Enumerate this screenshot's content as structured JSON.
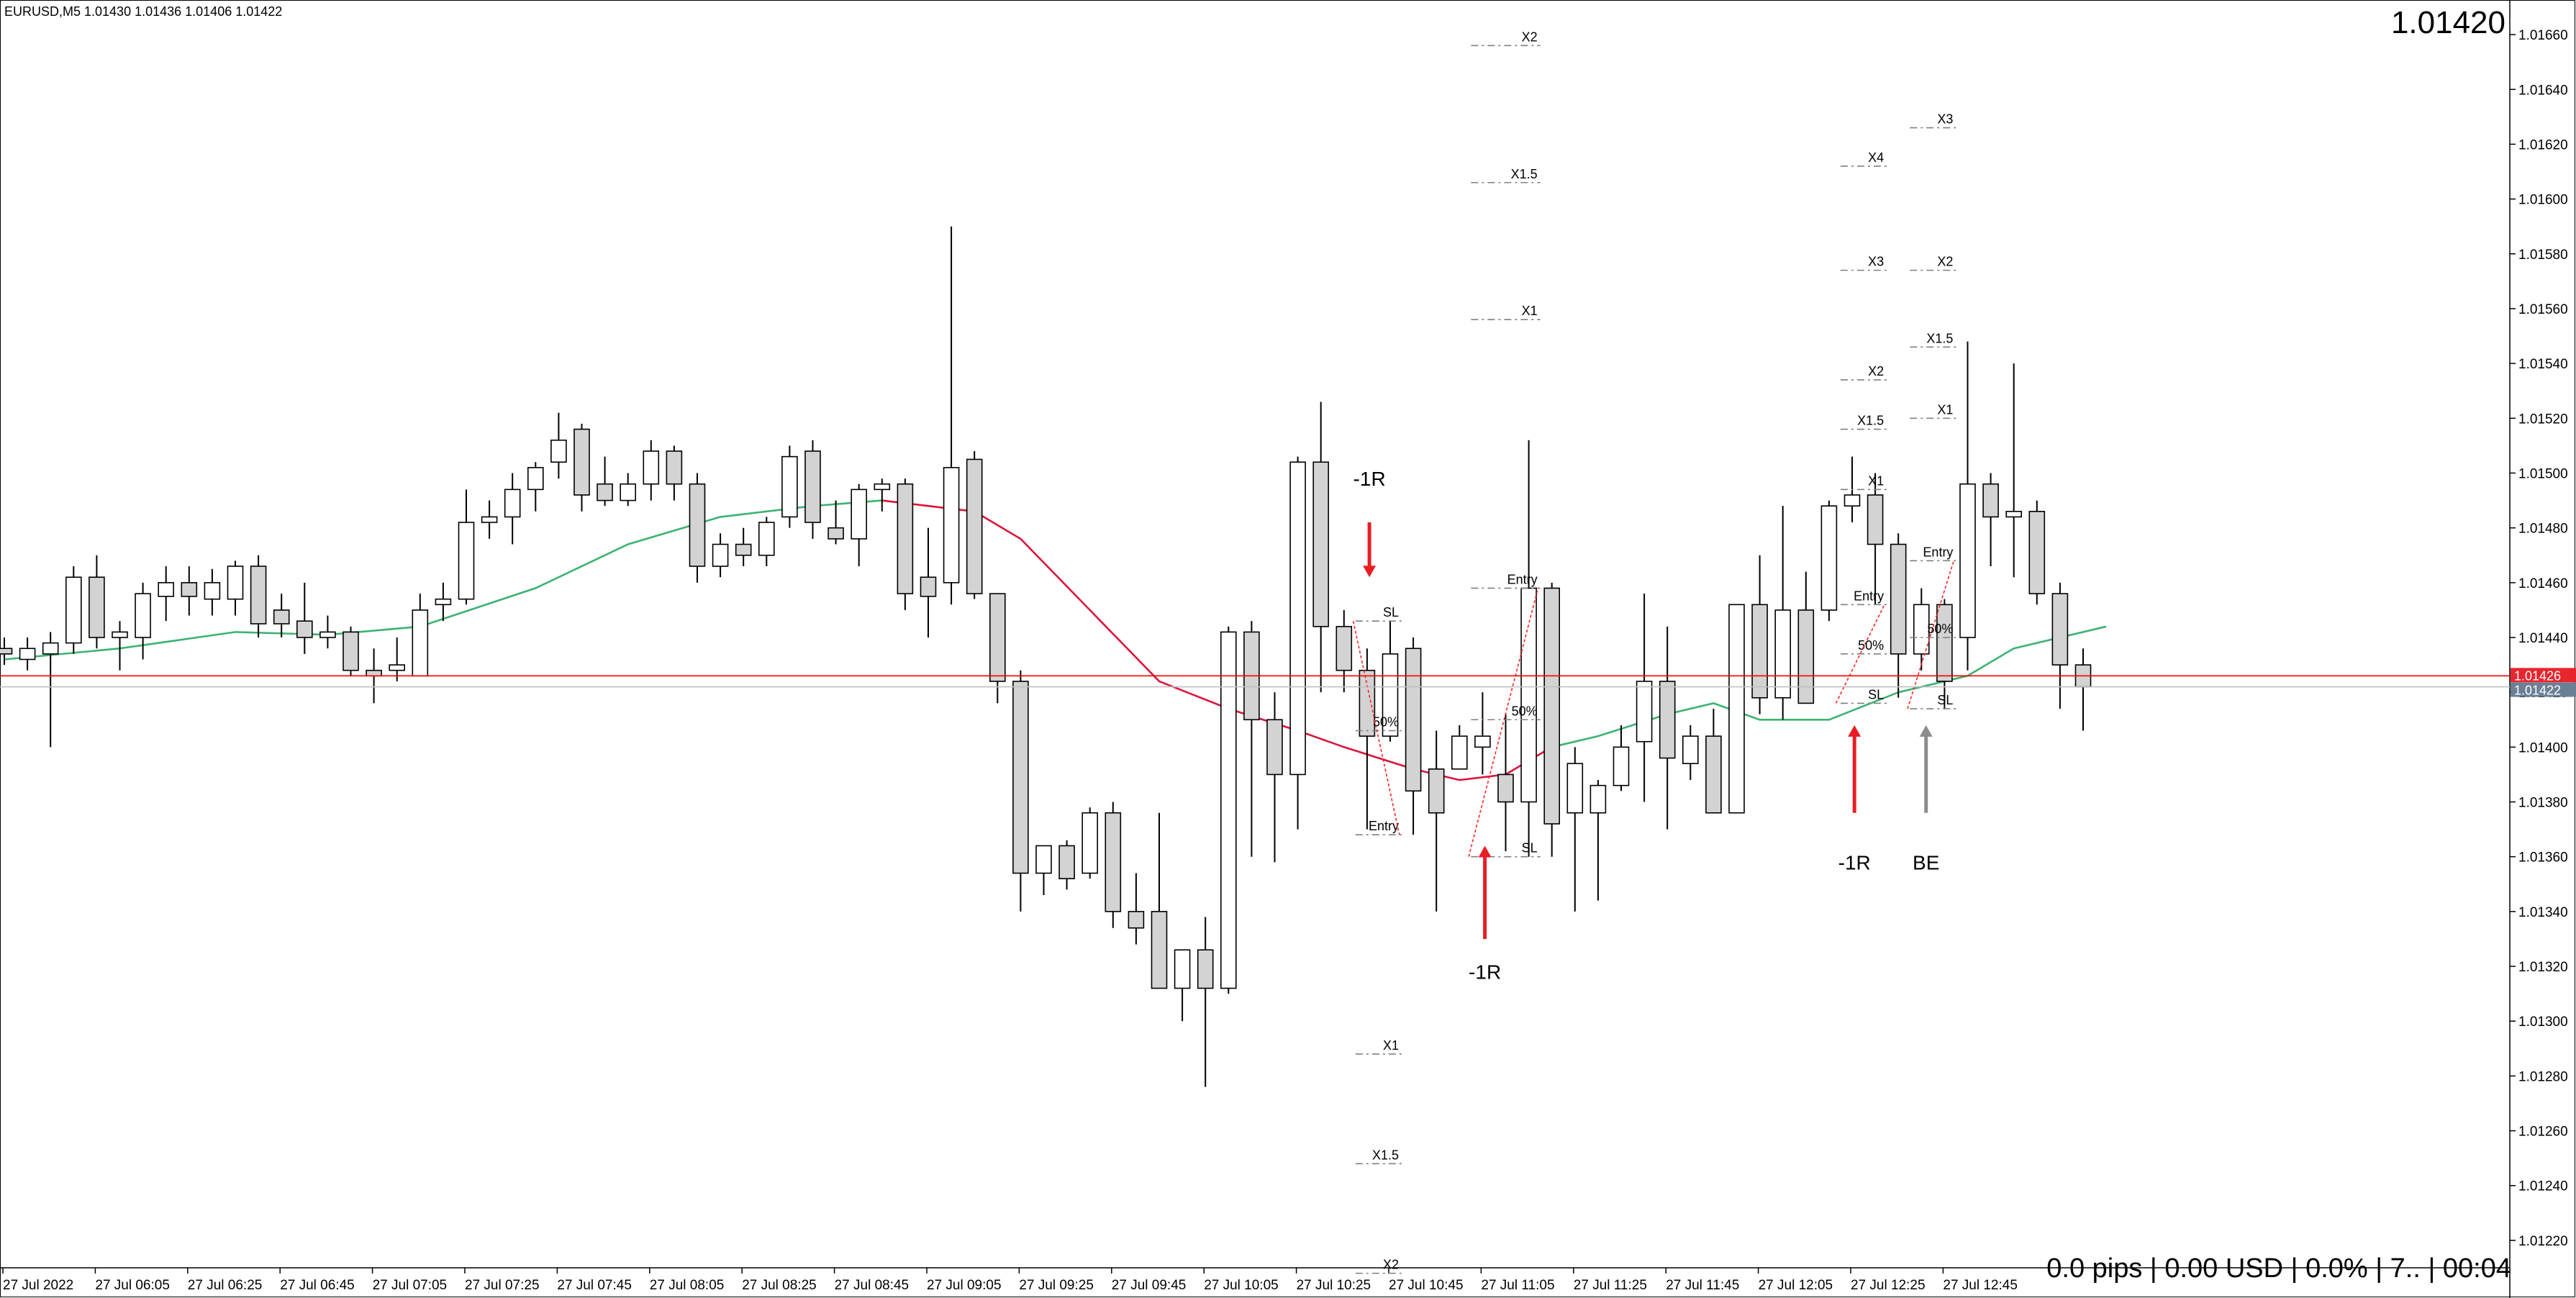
{
  "header": {
    "symbol_info": "EURUSD,M5  1.01430 1.01436 1.01406 1.01422",
    "big_price": "1.01420"
  },
  "footer": {
    "status_text": "0.0 pips | 0.00 USD | 0.0% | 7.. | 00:04"
  },
  "colors": {
    "background": "#ffffff",
    "bull_fill": "#ffffff",
    "bear_fill": "#d3d3d3",
    "candle_outline": "#000000",
    "ma_up": "#3cb371",
    "ma_down": "#dc143c",
    "ask_line": "#ff0000",
    "bid_line": "#c0c0c0",
    "ask_tag": "#e8262e",
    "bid_tag": "#6b7f95",
    "arrow_red": "#e81e25",
    "arrow_gray": "#8c8c8c",
    "level_line": "#808080"
  },
  "chart_data": {
    "type": "candlestick",
    "symbol": "EURUSD",
    "timeframe": "M5",
    "ylim": [
      1.0121,
      1.0167
    ],
    "y_ticks": [
      "1.01660",
      "1.01640",
      "1.01620",
      "1.01600",
      "1.01580",
      "1.01560",
      "1.01540",
      "1.01520",
      "1.01500",
      "1.01480",
      "1.01460",
      "1.01440",
      "1.01420",
      "1.01400",
      "1.01380",
      "1.01360",
      "1.01340",
      "1.01320",
      "1.01300",
      "1.01280",
      "1.01260",
      "1.01240",
      "1.01220"
    ],
    "x_ticks": [
      "27 Jul 2022",
      "27 Jul 06:05",
      "27 Jul 06:25",
      "27 Jul 06:45",
      "27 Jul 07:05",
      "27 Jul 07:25",
      "27 Jul 07:45",
      "27 Jul 08:05",
      "27 Jul 08:25",
      "27 Jul 08:45",
      "27 Jul 09:05",
      "27 Jul 09:25",
      "27 Jul 09:45",
      "27 Jul 10:05",
      "27 Jul 10:25",
      "27 Jul 10:45",
      "27 Jul 11:05",
      "27 Jul 11:25",
      "27 Jul 11:45",
      "27 Jul 12:05",
      "27 Jul 12:25",
      "27 Jul 12:45"
    ],
    "ask_price": "1.01426",
    "bid_price": "1.01422",
    "candles": [
      {
        "o": 1.01436,
        "h": 1.0144,
        "l": 1.0143,
        "c": 1.01434
      },
      {
        "o": 1.01432,
        "h": 1.0144,
        "l": 1.01428,
        "c": 1.01436
      },
      {
        "o": 1.01434,
        "h": 1.01442,
        "l": 1.014,
        "c": 1.01438
      },
      {
        "o": 1.01438,
        "h": 1.01466,
        "l": 1.01434,
        "c": 1.01462
      },
      {
        "o": 1.01462,
        "h": 1.0147,
        "l": 1.01436,
        "c": 1.0144
      },
      {
        "o": 1.0144,
        "h": 1.01446,
        "l": 1.01428,
        "c": 1.01442
      },
      {
        "o": 1.0144,
        "h": 1.0146,
        "l": 1.01432,
        "c": 1.01456
      },
      {
        "o": 1.01455,
        "h": 1.01466,
        "l": 1.01446,
        "c": 1.0146
      },
      {
        "o": 1.0146,
        "h": 1.01466,
        "l": 1.01448,
        "c": 1.01455
      },
      {
        "o": 1.01454,
        "h": 1.01465,
        "l": 1.01448,
        "c": 1.0146
      },
      {
        "o": 1.01454,
        "h": 1.01468,
        "l": 1.01448,
        "c": 1.01466
      },
      {
        "o": 1.01466,
        "h": 1.0147,
        "l": 1.0144,
        "c": 1.01445
      },
      {
        "o": 1.0145,
        "h": 1.01456,
        "l": 1.0144,
        "c": 1.01445
      },
      {
        "o": 1.01446,
        "h": 1.0146,
        "l": 1.01434,
        "c": 1.0144
      },
      {
        "o": 1.0144,
        "h": 1.01448,
        "l": 1.01436,
        "c": 1.01442
      },
      {
        "o": 1.01442,
        "h": 1.01444,
        "l": 1.01426,
        "c": 1.01428
      },
      {
        "o": 1.01428,
        "h": 1.01436,
        "l": 1.01416,
        "c": 1.01426
      },
      {
        "o": 1.01428,
        "h": 1.0144,
        "l": 1.01424,
        "c": 1.0143
      },
      {
        "o": 1.01426,
        "h": 1.01456,
        "l": 1.01426,
        "c": 1.0145
      },
      {
        "o": 1.01452,
        "h": 1.0146,
        "l": 1.01446,
        "c": 1.01454
      },
      {
        "o": 1.01454,
        "h": 1.01494,
        "l": 1.01452,
        "c": 1.01482
      },
      {
        "o": 1.01482,
        "h": 1.0149,
        "l": 1.01476,
        "c": 1.01484
      },
      {
        "o": 1.01484,
        "h": 1.015,
        "l": 1.01474,
        "c": 1.01494
      },
      {
        "o": 1.01494,
        "h": 1.01504,
        "l": 1.01486,
        "c": 1.01502
      },
      {
        "o": 1.01504,
        "h": 1.01522,
        "l": 1.01498,
        "c": 1.01512
      },
      {
        "o": 1.01516,
        "h": 1.01518,
        "l": 1.01486,
        "c": 1.01492
      },
      {
        "o": 1.01496,
        "h": 1.01506,
        "l": 1.01488,
        "c": 1.0149
      },
      {
        "o": 1.0149,
        "h": 1.015,
        "l": 1.01488,
        "c": 1.01496
      },
      {
        "o": 1.01496,
        "h": 1.01512,
        "l": 1.0149,
        "c": 1.01508
      },
      {
        "o": 1.01508,
        "h": 1.0151,
        "l": 1.0149,
        "c": 1.01496
      },
      {
        "o": 1.01496,
        "h": 1.015,
        "l": 1.0146,
        "c": 1.01466
      },
      {
        "o": 1.01466,
        "h": 1.01478,
        "l": 1.01462,
        "c": 1.01474
      },
      {
        "o": 1.01474,
        "h": 1.0148,
        "l": 1.01466,
        "c": 1.0147
      },
      {
        "o": 1.0147,
        "h": 1.01484,
        "l": 1.01466,
        "c": 1.01482
      },
      {
        "o": 1.01484,
        "h": 1.0151,
        "l": 1.0148,
        "c": 1.01506
      },
      {
        "o": 1.01508,
        "h": 1.01512,
        "l": 1.01476,
        "c": 1.01482
      },
      {
        "o": 1.0148,
        "h": 1.0149,
        "l": 1.01474,
        "c": 1.01476
      },
      {
        "o": 1.01476,
        "h": 1.01496,
        "l": 1.01466,
        "c": 1.01494
      },
      {
        "o": 1.01494,
        "h": 1.01498,
        "l": 1.01486,
        "c": 1.01496
      },
      {
        "o": 1.01496,
        "h": 1.01498,
        "l": 1.0145,
        "c": 1.01456
      },
      {
        "o": 1.01462,
        "h": 1.0148,
        "l": 1.0144,
        "c": 1.01455
      },
      {
        "o": 1.0146,
        "h": 1.0159,
        "l": 1.01452,
        "c": 1.01502
      },
      {
        "o": 1.01505,
        "h": 1.01508,
        "l": 1.01454,
        "c": 1.01456
      },
      {
        "o": 1.01456,
        "h": 1.01456,
        "l": 1.01416,
        "c": 1.01424
      },
      {
        "o": 1.01424,
        "h": 1.01428,
        "l": 1.0134,
        "c": 1.01354
      },
      {
        "o": 1.01354,
        "h": 1.01364,
        "l": 1.01346,
        "c": 1.01364
      },
      {
        "o": 1.01364,
        "h": 1.01366,
        "l": 1.01348,
        "c": 1.01352
      },
      {
        "o": 1.01354,
        "h": 1.01378,
        "l": 1.01352,
        "c": 1.01376
      },
      {
        "o": 1.01376,
        "h": 1.0138,
        "l": 1.01334,
        "c": 1.0134
      },
      {
        "o": 1.0134,
        "h": 1.01354,
        "l": 1.01328,
        "c": 1.01334
      },
      {
        "o": 1.0134,
        "h": 1.01376,
        "l": 1.01316,
        "c": 1.01312
      },
      {
        "o": 1.01312,
        "h": 1.01322,
        "l": 1.013,
        "c": 1.01326
      },
      {
        "o": 1.01326,
        "h": 1.01338,
        "l": 1.01276,
        "c": 1.01312
      },
      {
        "o": 1.01312,
        "h": 1.01444,
        "l": 1.0131,
        "c": 1.01442
      },
      {
        "o": 1.01442,
        "h": 1.01446,
        "l": 1.0136,
        "c": 1.0141
      },
      {
        "o": 1.0141,
        "h": 1.0142,
        "l": 1.01358,
        "c": 1.0139
      },
      {
        "o": 1.0139,
        "h": 1.01506,
        "l": 1.0137,
        "c": 1.01504
      },
      {
        "o": 1.01504,
        "h": 1.01526,
        "l": 1.0142,
        "c": 1.01444
      },
      {
        "o": 1.01444,
        "h": 1.0145,
        "l": 1.0142,
        "c": 1.01428
      },
      {
        "o": 1.01428,
        "h": 1.01436,
        "l": 1.0137,
        "c": 1.01404
      },
      {
        "o": 1.01404,
        "h": 1.01446,
        "l": 1.01402,
        "c": 1.01434
      },
      {
        "o": 1.01436,
        "h": 1.0144,
        "l": 1.01368,
        "c": 1.01384
      },
      {
        "o": 1.01392,
        "h": 1.01406,
        "l": 1.0134,
        "c": 1.01376
      },
      {
        "o": 1.01392,
        "h": 1.01408,
        "l": 1.01392,
        "c": 1.01404
      },
      {
        "o": 1.014,
        "h": 1.0142,
        "l": 1.0139,
        "c": 1.01404
      },
      {
        "o": 1.0139,
        "h": 1.01412,
        "l": 1.01362,
        "c": 1.0138
      },
      {
        "o": 1.0138,
        "h": 1.01512,
        "l": 1.0136,
        "c": 1.01458
      },
      {
        "o": 1.01458,
        "h": 1.0146,
        "l": 1.0136,
        "c": 1.01372
      },
      {
        "o": 1.01376,
        "h": 1.014,
        "l": 1.0134,
        "c": 1.01394
      },
      {
        "o": 1.01376,
        "h": 1.01388,
        "l": 1.01344,
        "c": 1.01386
      },
      {
        "o": 1.01386,
        "h": 1.01408,
        "l": 1.01384,
        "c": 1.014
      },
      {
        "o": 1.01402,
        "h": 1.01456,
        "l": 1.0138,
        "c": 1.01424
      },
      {
        "o": 1.01424,
        "h": 1.01444,
        "l": 1.0137,
        "c": 1.01396
      },
      {
        "o": 1.01394,
        "h": 1.01408,
        "l": 1.01388,
        "c": 1.01404
      },
      {
        "o": 1.01404,
        "h": 1.01414,
        "l": 1.01376,
        "c": 1.01376
      },
      {
        "o": 1.01376,
        "h": 1.01452,
        "l": 1.01376,
        "c": 1.01452
      },
      {
        "o": 1.01452,
        "h": 1.0147,
        "l": 1.01412,
        "c": 1.01418
      },
      {
        "o": 1.01418,
        "h": 1.01488,
        "l": 1.0141,
        "c": 1.0145
      },
      {
        "o": 1.0145,
        "h": 1.01464,
        "l": 1.01416,
        "c": 1.01416
      },
      {
        "o": 1.0145,
        "h": 1.0149,
        "l": 1.01446,
        "c": 1.01488
      },
      {
        "o": 1.01488,
        "h": 1.01506,
        "l": 1.01482,
        "c": 1.01492
      },
      {
        "o": 1.01492,
        "h": 1.015,
        "l": 1.01452,
        "c": 1.01474
      },
      {
        "o": 1.01474,
        "h": 1.01478,
        "l": 1.01418,
        "c": 1.01434
      },
      {
        "o": 1.01434,
        "h": 1.01458,
        "l": 1.01428,
        "c": 1.01452
      },
      {
        "o": 1.01452,
        "h": 1.01454,
        "l": 1.01414,
        "c": 1.01424
      },
      {
        "o": 1.0144,
        "h": 1.01548,
        "l": 1.01428,
        "c": 1.01496
      },
      {
        "o": 1.01496,
        "h": 1.015,
        "l": 1.01466,
        "c": 1.01484
      },
      {
        "o": 1.01484,
        "h": 1.0154,
        "l": 1.01462,
        "c": 1.01486
      },
      {
        "o": 1.01486,
        "h": 1.0149,
        "l": 1.01452,
        "c": 1.01456
      },
      {
        "o": 1.01456,
        "h": 1.0146,
        "l": 1.01414,
        "c": 1.0143
      },
      {
        "o": 1.0143,
        "h": 1.01436,
        "l": 1.01406,
        "c": 1.01422
      }
    ],
    "ma_points": [
      [
        0,
        1.01432
      ],
      [
        5,
        1.01436
      ],
      [
        10,
        1.01442
      ],
      [
        14,
        1.01441
      ],
      [
        18,
        1.01444
      ],
      [
        23,
        1.01458
      ],
      [
        27,
        1.01474
      ],
      [
        31,
        1.01484
      ],
      [
        35,
        1.01488
      ],
      [
        38,
        1.0149
      ],
      [
        42,
        1.01486
      ],
      [
        44,
        1.01476
      ],
      [
        47,
        1.0145
      ],
      [
        50,
        1.01424
      ],
      [
        53,
        1.01414
      ],
      [
        56,
        1.01406
      ],
      [
        58,
        1.014
      ],
      [
        61,
        1.01392
      ],
      [
        63,
        1.01388
      ],
      [
        65,
        1.0139
      ],
      [
        67,
        1.014
      ],
      [
        69,
        1.01404
      ],
      [
        72,
        1.01412
      ],
      [
        74,
        1.01416
      ],
      [
        76,
        1.0141
      ],
      [
        79,
        1.0141
      ],
      [
        82,
        1.0142
      ],
      [
        85,
        1.01426
      ],
      [
        87,
        1.01436
      ],
      [
        89,
        1.0144
      ],
      [
        91,
        1.01444
      ]
    ],
    "ma_color_segments": [
      {
        "from": 0,
        "to": 38,
        "color": "up"
      },
      {
        "from": 38,
        "to": 67,
        "color": "down"
      },
      {
        "from": 67,
        "to": 91,
        "color": "up"
      }
    ],
    "annotations": {
      "levels": [
        {
          "label": "X2",
          "price": 1.01656,
          "i1": 63.5,
          "i2": 66.5
        },
        {
          "label": "X1.5",
          "price": 1.01606,
          "i1": 63.5,
          "i2": 66.5
        },
        {
          "label": "X1",
          "price": 1.01556,
          "i1": 63.5,
          "i2": 66.5
        },
        {
          "label": "Entry",
          "price": 1.01458,
          "i1": 63.5,
          "i2": 66.5
        },
        {
          "label": "50%",
          "price": 1.0141,
          "i1": 63.5,
          "i2": 66.5
        },
        {
          "label": "SL",
          "price": 1.0136,
          "i1": 63.5,
          "i2": 66.5
        },
        {
          "label": "SL",
          "price": 1.01446,
          "i1": 58.5,
          "i2": 60.5
        },
        {
          "label": "50%",
          "price": 1.01406,
          "i1": 58.5,
          "i2": 60.5
        },
        {
          "label": "Entry",
          "price": 1.01368,
          "i1": 58.5,
          "i2": 60.5
        },
        {
          "label": "X1",
          "price": 1.01288,
          "i1": 58.5,
          "i2": 60.5
        },
        {
          "label": "X1.5",
          "price": 1.01248,
          "i1": 58.5,
          "i2": 60.5
        },
        {
          "label": "X2",
          "price": 1.01208,
          "i1": 58.5,
          "i2": 60.5
        },
        {
          "label": "X4",
          "price": 1.01612,
          "i1": 79.5,
          "i2": 81.5
        },
        {
          "label": "X3",
          "price": 1.01574,
          "i1": 79.5,
          "i2": 81.5
        },
        {
          "label": "X2",
          "price": 1.01534,
          "i1": 79.5,
          "i2": 81.5
        },
        {
          "label": "X1.5",
          "price": 1.01516,
          "i1": 79.5,
          "i2": 81.5
        },
        {
          "label": "X1",
          "price": 1.01494,
          "i1": 79.5,
          "i2": 81.5
        },
        {
          "label": "Entry",
          "price": 1.01452,
          "i1": 79.5,
          "i2": 81.5
        },
        {
          "label": "50%",
          "price": 1.01434,
          "i1": 79.5,
          "i2": 81.5
        },
        {
          "label": "SL",
          "price": 1.01416,
          "i1": 79.5,
          "i2": 81.5
        },
        {
          "label": "X3",
          "price": 1.01626,
          "i1": 82.5,
          "i2": 84.5
        },
        {
          "label": "X2",
          "price": 1.01574,
          "i1": 82.5,
          "i2": 84.5
        },
        {
          "label": "X1.5",
          "price": 1.01546,
          "i1": 82.5,
          "i2": 84.5
        },
        {
          "label": "X1",
          "price": 1.0152,
          "i1": 82.5,
          "i2": 84.5
        },
        {
          "label": "Entry",
          "price": 1.01468,
          "i1": 82.5,
          "i2": 84.5
        },
        {
          "label": "50%",
          "price": 1.0144,
          "i1": 82.5,
          "i2": 84.5
        },
        {
          "label": "SL",
          "price": 1.01414,
          "i1": 82.5,
          "i2": 84.5
        }
      ],
      "diagonals": [
        {
          "i1": 58.4,
          "p1": 1.01446,
          "i2": 60.4,
          "p2": 1.01368
        },
        {
          "i1": 63.4,
          "p1": 1.0136,
          "i2": 66.4,
          "p2": 1.01458
        },
        {
          "i1": 79.3,
          "p1": 1.01416,
          "i2": 81.4,
          "p2": 1.01452
        },
        {
          "i1": 82.4,
          "p1": 1.01414,
          "i2": 84.4,
          "p2": 1.01468
        }
      ],
      "arrows": [
        {
          "dir": "down",
          "i": 59.1,
          "p_tail": 1.01482,
          "p_head": 1.01462,
          "color": "red",
          "label": "-1R",
          "label_pos": "above",
          "label_price": 1.01498
        },
        {
          "dir": "up",
          "i": 64.1,
          "p_tail": 1.0133,
          "p_head": 1.01364,
          "color": "red",
          "label": "-1R",
          "label_pos": "below",
          "label_price": 1.01318
        },
        {
          "dir": "up",
          "i": 80.1,
          "p_tail": 1.01376,
          "p_head": 1.01408,
          "color": "red",
          "label": "-1R",
          "label_pos": "below",
          "label_price": 1.01358
        },
        {
          "dir": "up",
          "i": 83.2,
          "p_tail": 1.01376,
          "p_head": 1.01408,
          "color": "gray",
          "label": "BE",
          "label_pos": "below",
          "label_price": 1.01358
        }
      ]
    }
  }
}
